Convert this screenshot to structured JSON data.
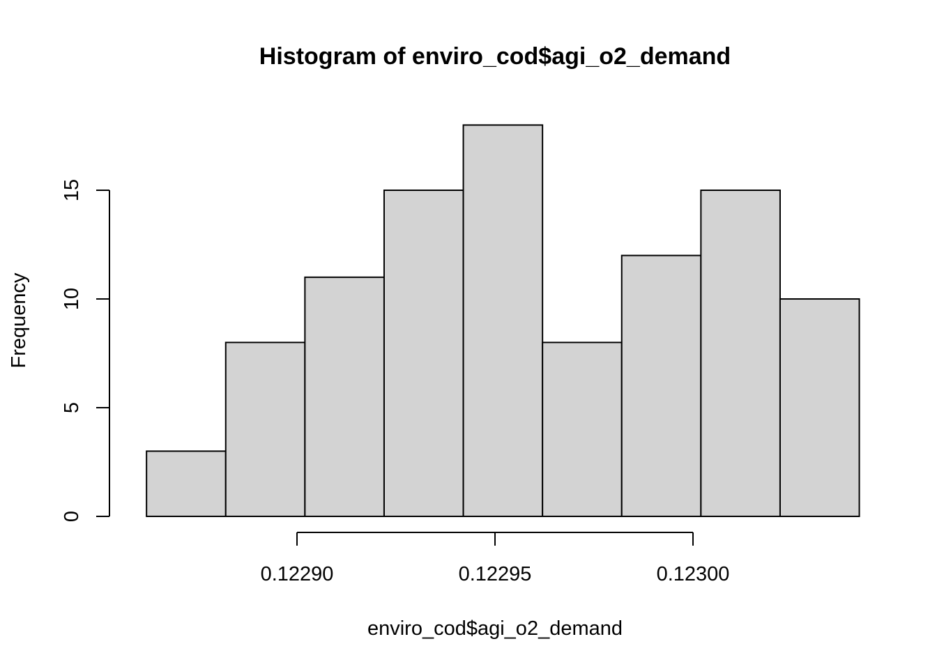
{
  "chart_data": {
    "type": "bar",
    "title": "Histogram of enviro_cod$agi_o2_demand",
    "xlabel": "enviro_cod$agi_o2_demand",
    "ylabel": "Frequency",
    "bins": [
      {
        "start": 0.122862,
        "end": 0.122882,
        "count": 3
      },
      {
        "start": 0.122882,
        "end": 0.122902,
        "count": 8
      },
      {
        "start": 0.122902,
        "end": 0.122922,
        "count": 11
      },
      {
        "start": 0.122922,
        "end": 0.122942,
        "count": 15
      },
      {
        "start": 0.122942,
        "end": 0.122962,
        "count": 18
      },
      {
        "start": 0.122962,
        "end": 0.122982,
        "count": 8
      },
      {
        "start": 0.122982,
        "end": 0.123002,
        "count": 12
      },
      {
        "start": 0.123002,
        "end": 0.123022,
        "count": 15
      },
      {
        "start": 0.123022,
        "end": 0.123042,
        "count": 10
      }
    ],
    "x_ticks": [
      {
        "value": 0.1229,
        "label": "0.12290"
      },
      {
        "value": 0.12295,
        "label": "0.12295"
      },
      {
        "value": 0.123,
        "label": "0.12300"
      }
    ],
    "y_ticks": [
      {
        "value": 0,
        "label": "0"
      },
      {
        "value": 5,
        "label": "5"
      },
      {
        "value": 10,
        "label": "10"
      },
      {
        "value": 15,
        "label": "15"
      }
    ],
    "bar_color": "#d3d3d3",
    "edge_color": "#000000",
    "grid": false
  }
}
